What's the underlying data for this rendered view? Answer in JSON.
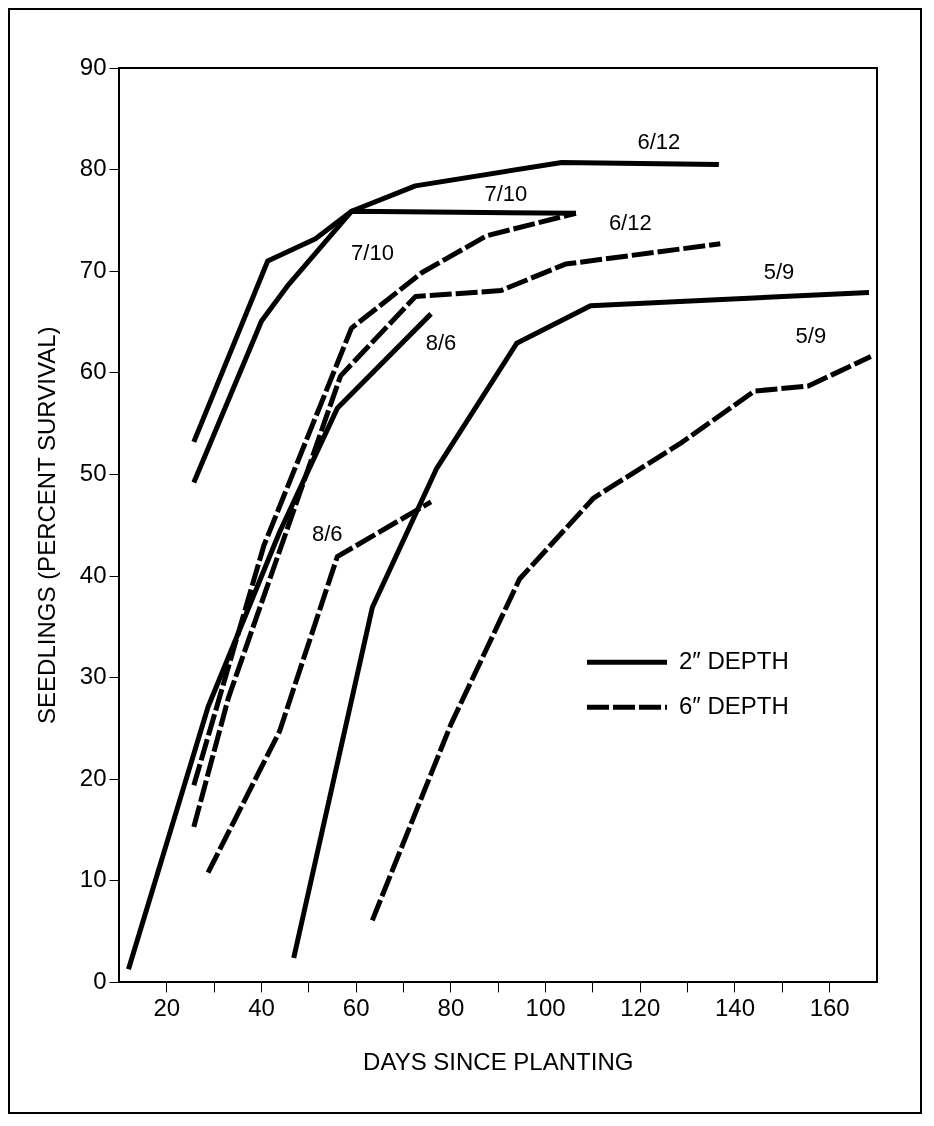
{
  "chart_data": {
    "type": "line",
    "xlabel": "DAYS SINCE PLANTING",
    "ylabel": "SEEDLINGS (PERCENT SURVIVAL)",
    "xlim": [
      10,
      170
    ],
    "xticks": [
      20,
      {
        "value": 30,
        "label": null
      },
      40,
      {
        "value": 50,
        "label": null
      },
      60,
      {
        "value": 70,
        "label": null
      },
      80,
      {
        "value": 90,
        "label": null
      },
      100,
      {
        "value": 110,
        "label": null
      },
      120,
      {
        "value": 130,
        "label": null
      },
      140,
      {
        "value": 150,
        "label": null
      },
      160
    ],
    "ylim": [
      0,
      90
    ],
    "yticks": [
      0,
      10,
      20,
      30,
      40,
      50,
      60,
      70,
      80,
      90
    ],
    "grid": false,
    "marker": "none",
    "legend": "right",
    "annotations": [
      "2″ DEPTH",
      "6″ DEPTH"
    ],
    "series": [
      {
        "name": "6/12",
        "color": "#000000",
        "line_style": "solid",
        "x": [
          25.7,
          40,
          45.4,
          59,
          72.5,
          103.4,
          136.6
        ],
        "values": [
          49.2,
          65.1,
          68.5,
          75.9,
          78.4,
          80.7,
          80.5
        ]
      },
      {
        "name": "7/10",
        "color": "#000000",
        "line_style": "solid",
        "x": [
          25.7,
          41.3,
          51.4,
          59,
          106.4
        ],
        "values": [
          53.2,
          71,
          73.2,
          75.9,
          75.7
        ]
      },
      {
        "name": "8/6",
        "color": "#000000",
        "line_style": "solid",
        "x": [
          11.9,
          28.7,
          43.8,
          56,
          75.8
        ],
        "values": [
          1.3,
          27.1,
          44.3,
          56.5,
          65.8
        ]
      },
      {
        "name": "5/9",
        "color": "#000000",
        "line_style": "solid",
        "x": [
          46.8,
          63.4,
          77,
          93.9,
          109.5,
          168.3
        ],
        "values": [
          2.4,
          36.9,
          50.6,
          62.9,
          66.6,
          67.9
        ]
      },
      {
        "name": "6/12",
        "color": "#000000",
        "line_style": "dashed",
        "x": [
          25.7,
          33,
          56.7,
          72.5,
          90.6,
          104.2,
          136.9
        ],
        "values": [
          15.3,
          28,
          59.7,
          67.5,
          68.1,
          70.7,
          72.7
        ]
      },
      {
        "name": "7/10",
        "color": "#000000",
        "line_style": "dashed",
        "x": [
          25.7,
          40.5,
          59,
          74,
          87.6,
          106.4
        ],
        "values": [
          19.4,
          43,
          64.4,
          69.9,
          73.5,
          75.7
        ]
      },
      {
        "name": "8/6",
        "color": "#000000",
        "line_style": "dashed",
        "x": [
          28.7,
          43.8,
          56,
          75.8
        ],
        "values": [
          10.8,
          24.7,
          41.9,
          47.3
        ]
      },
      {
        "name": "5/9",
        "color": "#000000",
        "line_style": "dashed",
        "x": [
          63.4,
          80,
          94.5,
          110.2,
          128.3,
          144.1,
          155.5,
          168.7
        ],
        "values": [
          6.1,
          25.4,
          39.7,
          47.7,
          53,
          58.2,
          58.7,
          61.6
        ]
      }
    ]
  }
}
